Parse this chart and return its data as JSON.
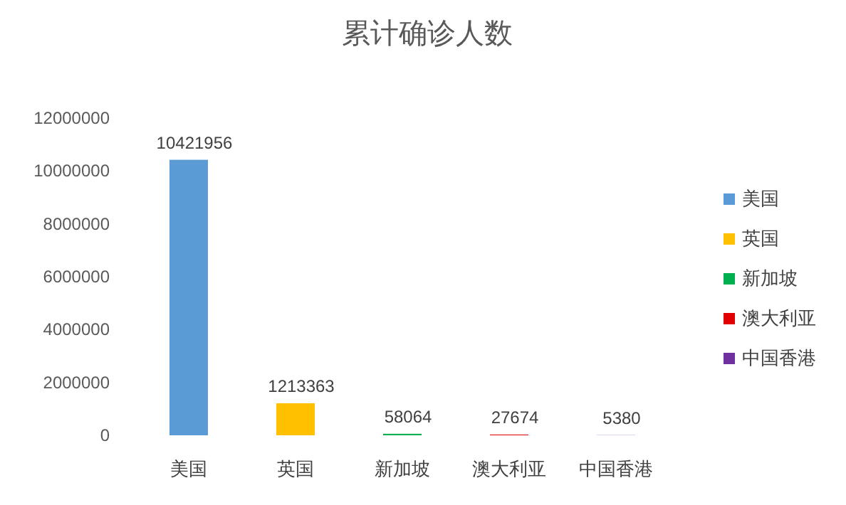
{
  "chart_data": {
    "type": "bar",
    "title": "累计确诊人数",
    "categories": [
      "美国",
      "英国",
      "新加坡",
      "澳大利亚",
      "中国香港"
    ],
    "series": [
      {
        "name": "美国",
        "color": "#5b9bd5",
        "values": [
          10421956,
          null,
          null,
          null,
          null
        ]
      },
      {
        "name": "英国",
        "color": "#ffc000",
        "values": [
          null,
          1213363,
          null,
          null,
          null
        ]
      },
      {
        "name": "新加坡",
        "color": "#00b050",
        "values": [
          null,
          null,
          58064,
          null,
          null
        ]
      },
      {
        "name": "澳大利亚",
        "color": "#e00000",
        "values": [
          null,
          null,
          null,
          27674,
          null
        ]
      },
      {
        "name": "中国香港",
        "color": "#7030a0",
        "values": [
          null,
          null,
          null,
          null,
          5380
        ]
      }
    ],
    "ylim": [
      0,
      12000000
    ],
    "yticks": [
      0,
      2000000,
      4000000,
      6000000,
      8000000,
      10000000,
      12000000
    ],
    "data_labels": true,
    "legend": "right"
  }
}
